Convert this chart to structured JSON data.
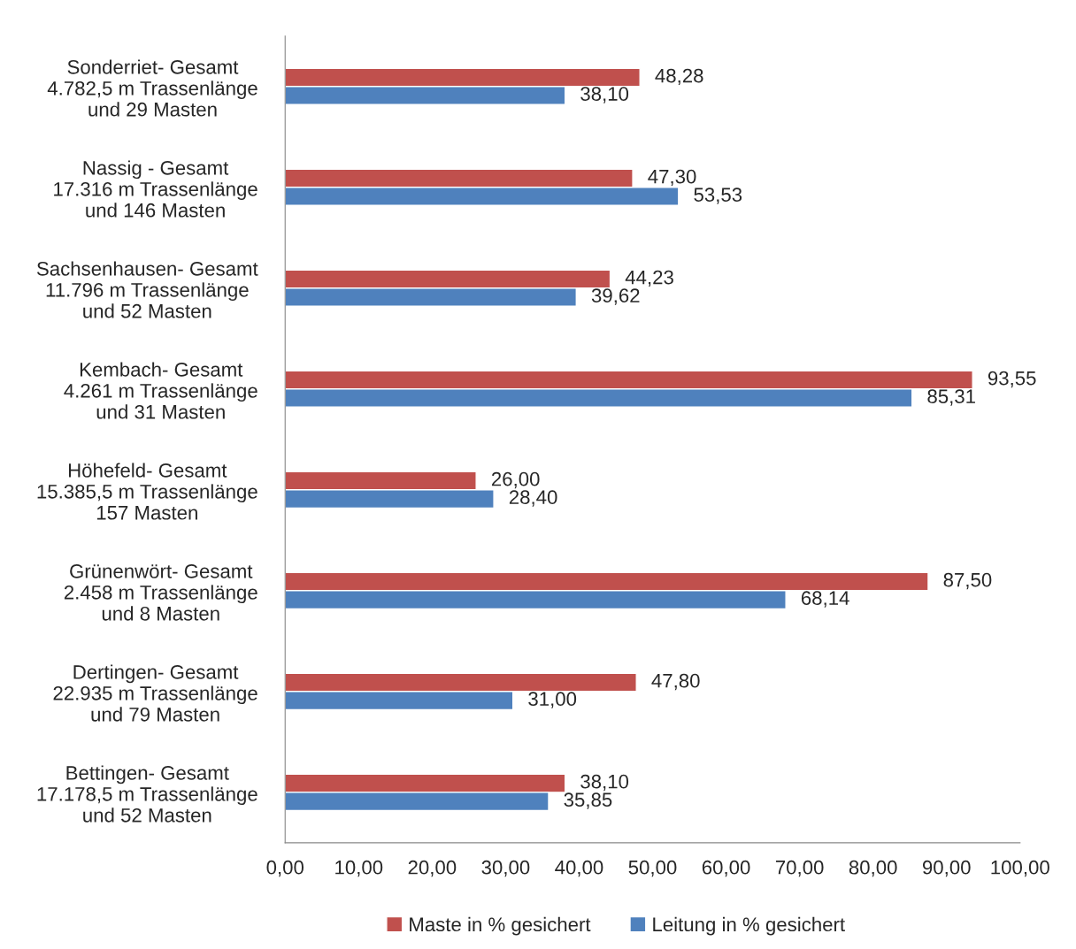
{
  "chart_data": {
    "type": "bar",
    "orientation": "horizontal",
    "categories": [
      "Sonderriet- Gesamt\n4.782,5 m Trassenlänge\nund 29 Masten",
      "Nassig - Gesamt\n17.316 m Trassenlänge\nund 146 Masten",
      "Sachsenhausen- Gesamt\n11.796 m Trassenlänge\nund 52 Masten",
      "Kembach- Gesamt\n4.261 m Trassenlänge\nund 31 Masten",
      "Höhefeld- Gesamt\n15.385,5 m Trassenlänge\n157 Masten",
      "Grünenwört- Gesamt\n2.458 m Trassenlänge\nund 8 Masten",
      "Dertingen- Gesamt\n22.935 m Trassenlänge\nund 79 Masten",
      "Bettingen- Gesamt\n17.178,5 m Trassenlänge\nund 52 Masten"
    ],
    "series": [
      {
        "name": "Maste in % gesichert",
        "color": "#c0504d",
        "values": [
          48.28,
          47.3,
          44.23,
          93.55,
          26.0,
          87.5,
          47.8,
          38.1
        ],
        "value_labels": [
          "48,28",
          "47,30",
          "44,23",
          "93,55",
          "26,00",
          "87,50",
          "47,80",
          "38,10"
        ]
      },
      {
        "name": "Leitung in % gesichert",
        "color": "#4f81bd",
        "values": [
          38.1,
          53.53,
          39.62,
          85.31,
          28.4,
          68.14,
          31.0,
          35.85
        ],
        "value_labels": [
          "38,10",
          "53,53",
          "39,62",
          "85,31",
          "28,40",
          "68,14",
          "31,00",
          "35,85"
        ]
      }
    ],
    "xlim": [
      0,
      100
    ],
    "xticks": [
      {
        "value": 0,
        "label": "0,00"
      },
      {
        "value": 10,
        "label": "10,00"
      },
      {
        "value": 20,
        "label": "20,00"
      },
      {
        "value": 30,
        "label": "30,00"
      },
      {
        "value": 40,
        "label": "40,00"
      },
      {
        "value": 50,
        "label": "50,00"
      },
      {
        "value": 60,
        "label": "60,00"
      },
      {
        "value": 70,
        "label": "70,00"
      },
      {
        "value": 80,
        "label": "80,00"
      },
      {
        "value": 90,
        "label": "90,00"
      },
      {
        "value": 100,
        "label": "100,00"
      }
    ],
    "grid": false,
    "legend": "bottom"
  }
}
